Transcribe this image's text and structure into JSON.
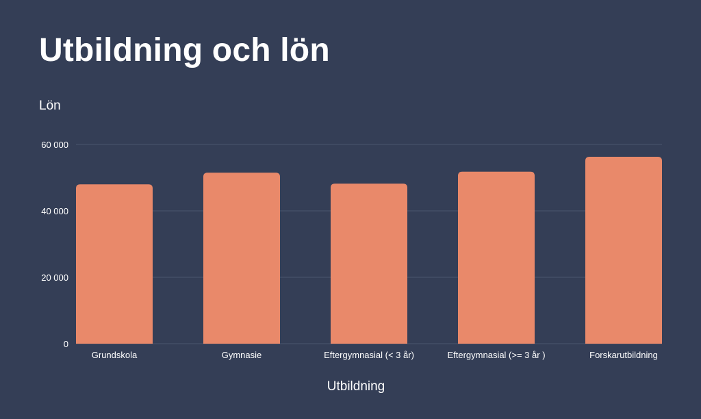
{
  "chart_data": {
    "type": "bar",
    "title": "Utbildning och lön",
    "xlabel": "Utbildning",
    "ylabel": "Lön",
    "categories": [
      "Grundskola",
      "Gymnasie",
      "Eftergymnasial (< 3 år)",
      "Eftergymnasial (>= 3 år )",
      "Forskarutbildning"
    ],
    "values": [
      48000,
      51500,
      48200,
      51800,
      56300
    ],
    "ylim": [
      0,
      60000
    ],
    "yticks": [
      0,
      20000,
      40000,
      60000
    ],
    "ytick_labels": [
      "0",
      "20 000",
      "40 000",
      "60 000"
    ],
    "grid": true,
    "colors": {
      "background": "#343e56",
      "bar": "#e9896a",
      "grid": "#4a556e",
      "text": "#ffffff"
    }
  }
}
